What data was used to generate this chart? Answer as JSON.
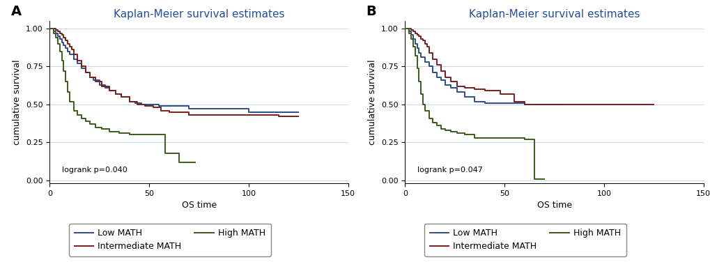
{
  "title": "Kaplan-Meier survival estimates",
  "title_color": "#1f4e9e",
  "xlabel": "OS time",
  "ylabel": "cumulative survival",
  "panel_labels": [
    "A",
    "B"
  ],
  "logrank_p": [
    "logrank p=0.040",
    "logrank p=0.047"
  ],
  "xlim": [
    0,
    150
  ],
  "ylim": [
    -0.02,
    1.05
  ],
  "xticks": [
    0,
    50,
    100,
    150
  ],
  "yticks": [
    0.0,
    0.25,
    0.5,
    0.75,
    1.0
  ],
  "ytick_labels": [
    "0.00",
    "0.25",
    "0.50",
    "0.75",
    "1.00"
  ],
  "colors": {
    "low": "#2e4d8a",
    "intermediate": "#7a1e1e",
    "high": "#3a5c1a"
  },
  "panel_A": {
    "low": {
      "t": [
        0,
        2,
        3,
        4,
        5,
        6,
        7,
        8,
        9,
        10,
        12,
        14,
        16,
        18,
        20,
        22,
        25,
        28,
        30,
        33,
        36,
        40,
        43,
        46,
        50,
        55,
        60,
        70,
        80,
        90,
        100,
        110,
        125
      ],
      "s": [
        1.0,
        0.98,
        0.97,
        0.95,
        0.93,
        0.91,
        0.89,
        0.87,
        0.85,
        0.83,
        0.8,
        0.77,
        0.74,
        0.71,
        0.68,
        0.66,
        0.63,
        0.61,
        0.59,
        0.57,
        0.55,
        0.52,
        0.51,
        0.5,
        0.5,
        0.49,
        0.49,
        0.47,
        0.47,
        0.47,
        0.45,
        0.45,
        0.45
      ]
    },
    "intermediate": {
      "t": [
        0,
        3,
        4,
        5,
        6,
        7,
        8,
        9,
        10,
        11,
        12,
        14,
        16,
        18,
        20,
        23,
        26,
        30,
        33,
        36,
        40,
        44,
        48,
        52,
        56,
        60,
        70,
        80,
        100,
        115,
        125
      ],
      "s": [
        1.0,
        0.99,
        0.98,
        0.97,
        0.96,
        0.94,
        0.92,
        0.9,
        0.88,
        0.86,
        0.83,
        0.79,
        0.75,
        0.71,
        0.68,
        0.65,
        0.62,
        0.59,
        0.57,
        0.55,
        0.52,
        0.5,
        0.49,
        0.48,
        0.46,
        0.45,
        0.43,
        0.43,
        0.43,
        0.42,
        0.42
      ]
    },
    "high": {
      "t": [
        0,
        2,
        3,
        4,
        5,
        6,
        7,
        8,
        9,
        10,
        12,
        14,
        16,
        18,
        20,
        23,
        26,
        30,
        35,
        40,
        45,
        50,
        55,
        58,
        62,
        65,
        70,
        73
      ],
      "s": [
        1.0,
        0.97,
        0.94,
        0.9,
        0.85,
        0.79,
        0.72,
        0.65,
        0.58,
        0.52,
        0.46,
        0.43,
        0.41,
        0.39,
        0.37,
        0.35,
        0.34,
        0.32,
        0.31,
        0.3,
        0.3,
        0.3,
        0.3,
        0.18,
        0.18,
        0.12,
        0.12,
        0.12
      ]
    }
  },
  "panel_B": {
    "low": {
      "t": [
        0,
        2,
        3,
        4,
        5,
        6,
        7,
        8,
        10,
        12,
        14,
        16,
        18,
        20,
        23,
        26,
        30,
        35,
        40,
        45,
        50,
        60,
        70,
        80
      ],
      "s": [
        1.0,
        0.98,
        0.96,
        0.93,
        0.9,
        0.87,
        0.84,
        0.81,
        0.78,
        0.75,
        0.71,
        0.68,
        0.66,
        0.63,
        0.61,
        0.58,
        0.55,
        0.52,
        0.51,
        0.51,
        0.51,
        0.5,
        0.5,
        0.5
      ]
    },
    "intermediate": {
      "t": [
        0,
        3,
        4,
        5,
        6,
        7,
        8,
        9,
        10,
        11,
        12,
        14,
        16,
        18,
        20,
        23,
        26,
        30,
        35,
        40,
        48,
        55,
        60,
        70,
        85,
        100,
        120,
        125
      ],
      "s": [
        1.0,
        0.99,
        0.98,
        0.97,
        0.96,
        0.95,
        0.93,
        0.92,
        0.9,
        0.88,
        0.84,
        0.8,
        0.76,
        0.72,
        0.68,
        0.65,
        0.62,
        0.61,
        0.6,
        0.59,
        0.57,
        0.52,
        0.5,
        0.5,
        0.5,
        0.5,
        0.5,
        0.5
      ]
    },
    "high": {
      "t": [
        0,
        2,
        3,
        4,
        5,
        6,
        7,
        8,
        9,
        10,
        12,
        14,
        16,
        18,
        20,
        23,
        26,
        30,
        35,
        40,
        45,
        55,
        60,
        65,
        70
      ],
      "s": [
        1.0,
        0.97,
        0.93,
        0.88,
        0.82,
        0.74,
        0.65,
        0.57,
        0.5,
        0.46,
        0.41,
        0.38,
        0.36,
        0.34,
        0.33,
        0.32,
        0.31,
        0.3,
        0.28,
        0.28,
        0.28,
        0.28,
        0.27,
        0.01,
        0.01
      ]
    }
  },
  "legend_entries": [
    "Low MATH",
    "Intermediate MATH",
    "High MATH"
  ],
  "line_width": 1.4,
  "title_fontsize": 11,
  "label_fontsize": 9,
  "tick_fontsize": 8,
  "annot_fontsize": 8,
  "legend_fontsize": 9,
  "panel_label_fontsize": 14
}
